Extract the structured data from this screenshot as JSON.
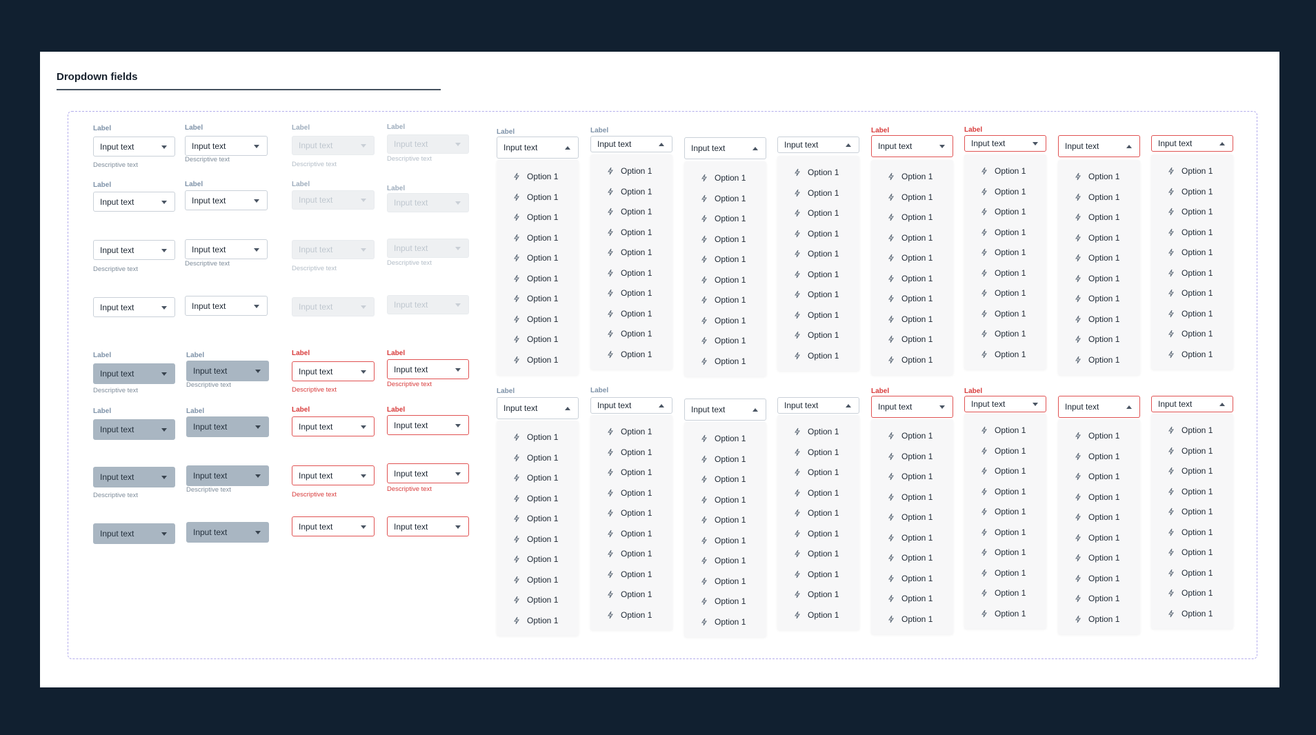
{
  "page": {
    "title": "Dropdown fields"
  },
  "field": {
    "label": "Label",
    "value": "Input text",
    "description": "Descriptive text"
  },
  "option_label": "Option 1",
  "icons": {
    "caret": "caret-down-icon",
    "caret_open": "caret-up-icon",
    "option": "lightning-icon"
  },
  "colors": {
    "background": "#112030",
    "error": "#e05252",
    "filled": "#a9b6c2",
    "frame": "#b3acec"
  }
}
